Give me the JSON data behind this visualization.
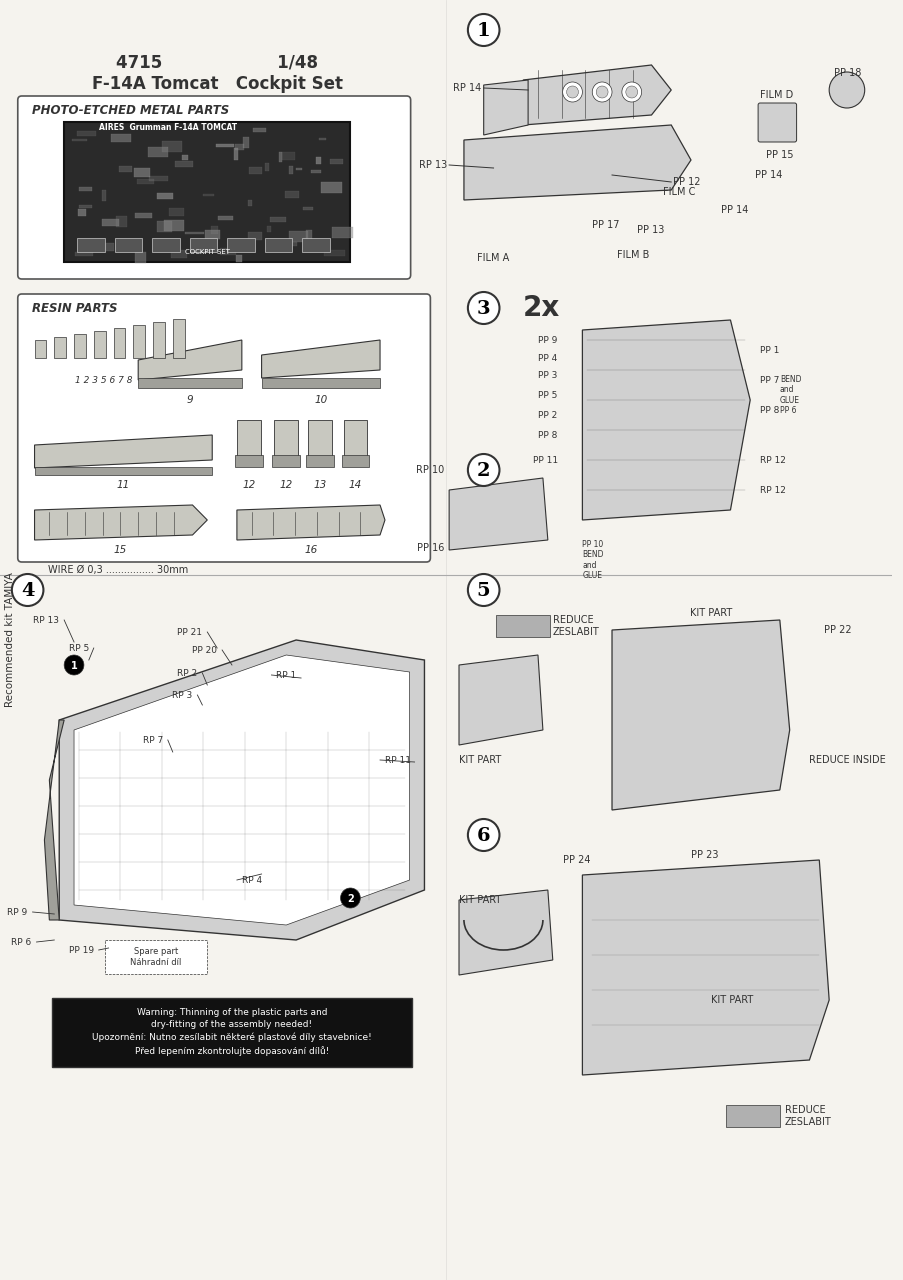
{
  "background_color": "#f5f3ee",
  "page_bg": "#f5f3ee",
  "title_line1": "4715                    1/48",
  "title_line2": "F-14A Tomcat   Cockpit Set",
  "sidebar_text": "Recommended kit TAMIYA",
  "photo_etched_label": "PHOTO-ETCHED METAL PARTS",
  "resin_parts_label": "RESIN PARTS",
  "resin_parts_numbers": "1 2 3 5 6 7 8",
  "wire_label": "WIRE Ø 0,3 ................ 30mm",
  "step1_label": "1",
  "step2_label": "2",
  "step3_label": "3",
  "step3_extra": "2x",
  "step4_label": "4",
  "step5_label": "5",
  "step6_label": "6",
  "warning_text": "Warning: Thinning of the plastic parts and\ndry-fitting of the assembly needed!\nUpozornění: Nutno zesílabit některé plastové díly stavebnice!\nPřed lepením zkontrolujte dopasování dílů!",
  "step5_reduce": "REDUCE\nZESLABIT",
  "step6_reduce": "REDUCE\nZESLABIT",
  "kit_part": "KIT PART",
  "reduce_inside": "REDUCE INSIDE",
  "spare_part": "Spare part\nNáhradní díl",
  "bend_glue": "BEND\nand\nGLUE\nPP 6",
  "bend_glue2": "PP 10\nBEND\nand\nGLUE",
  "line_color": "#333333",
  "box_border": "#555555",
  "step_circle_color": "#ffffff",
  "step_circle_border": "#333333",
  "gray_fill": "#b0b0b0",
  "light_gray": "#d0d0d0",
  "dark_fill": "#404040",
  "photo_etch_fill": "#2a2a2a",
  "resin_fill_light": "#c8c8c0",
  "resin_fill_medium": "#a0a09a"
}
